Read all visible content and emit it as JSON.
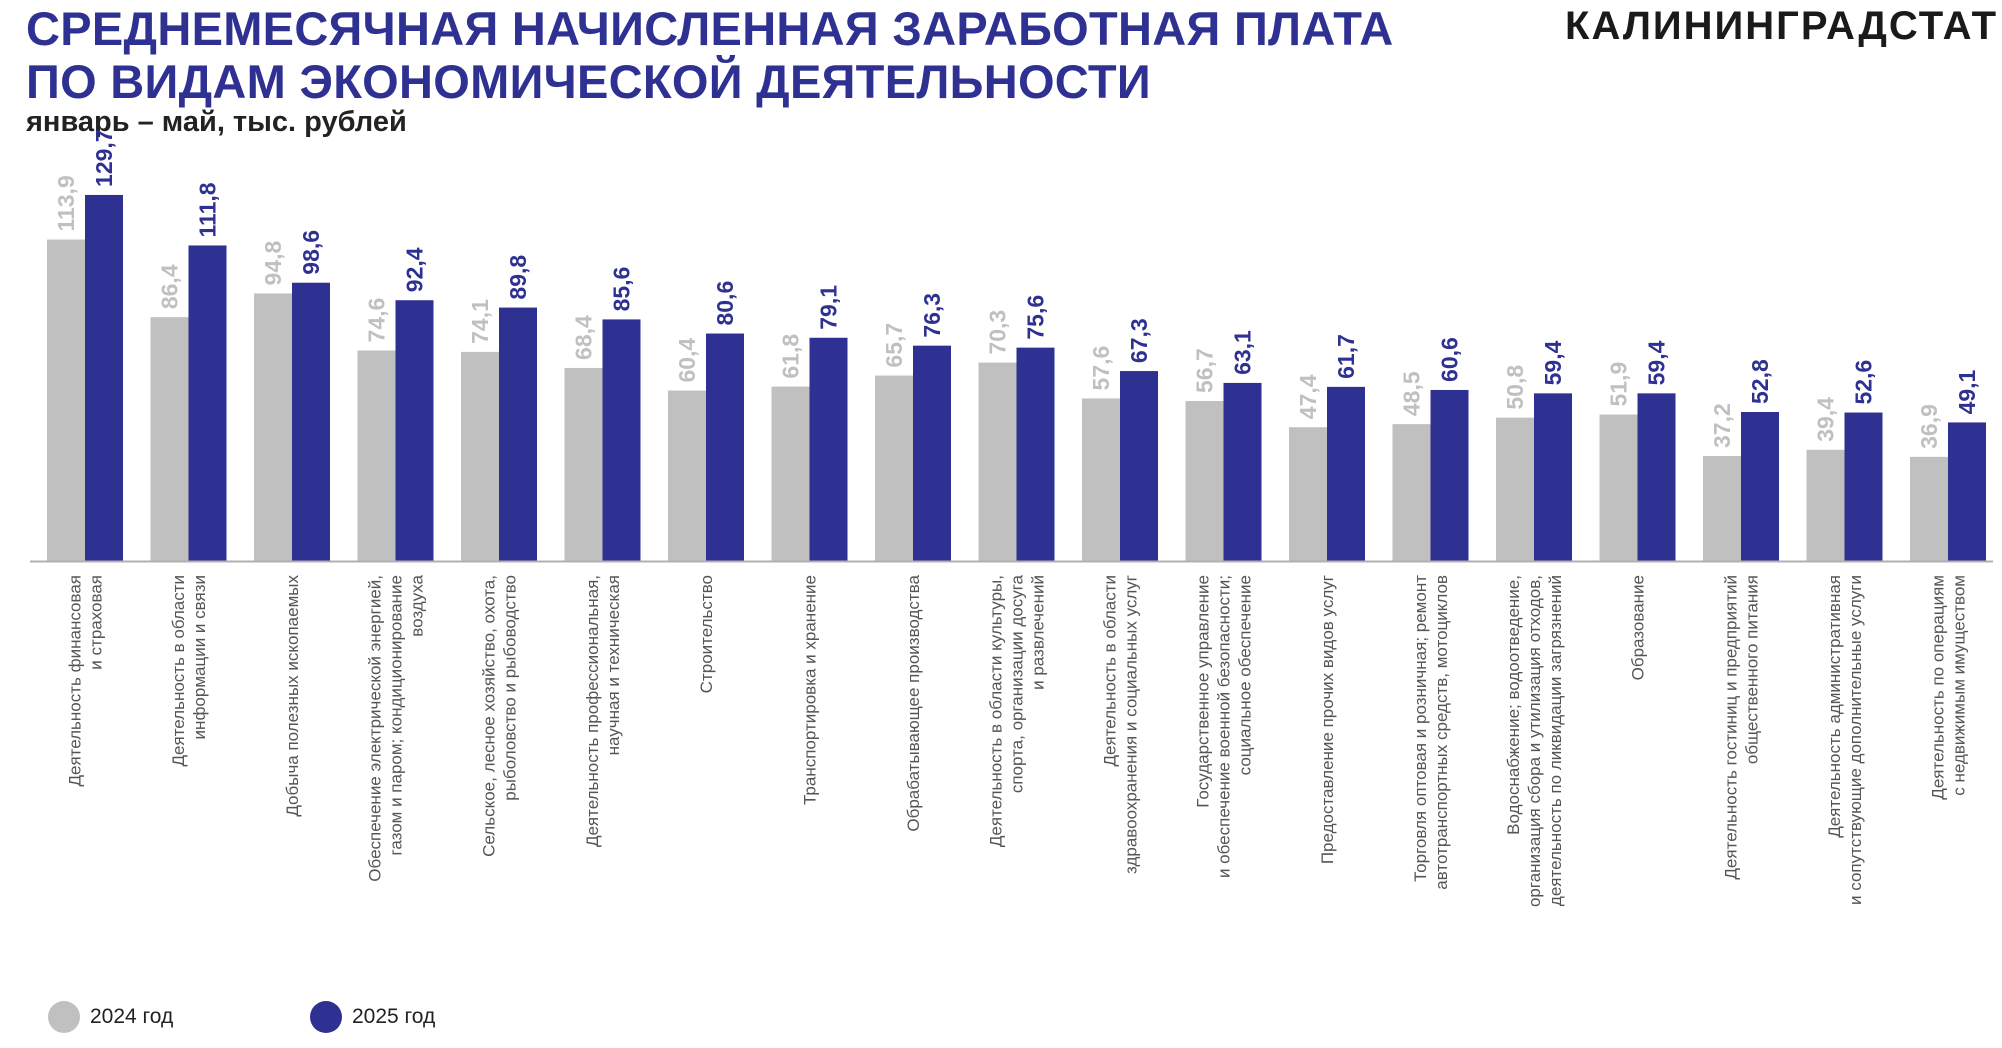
{
  "header": {
    "title_line1": "СРЕДНЕМЕСЯЧНАЯ НАЧИСЛЕННАЯ ЗАРАБОТНАЯ ПЛАТА",
    "title_line2": "ПО ВИДАМ ЭКОНОМИЧЕСКОЙ ДЕЯТЕЛЬНОСТИ",
    "subtitle": "январь – май, тыс. рублей",
    "brand": "КАЛИНИНГРАДСТАТ"
  },
  "colors": {
    "series_2024": "#c0c0c0",
    "series_2025": "#2e3192",
    "axis": "#b0b0b0",
    "label": "#555555"
  },
  "chart_data": {
    "type": "bar",
    "title": "СРЕДНЕМЕСЯЧНАЯ НАЧИСЛЕННАЯ ЗАРАБОТНАЯ ПЛАТА ПО ВИДАМ ЭКОНОМИЧЕСКОЙ ДЕЯТЕЛЬНОСТИ",
    "subtitle": "январь – май, тыс. рублей",
    "ylim": [
      0,
      135
    ],
    "grid": false,
    "legend_position": "bottom-left",
    "categories": [
      [
        "Деятельность финансовая",
        "и страховая"
      ],
      [
        "Деятельность в области",
        "информации и связи"
      ],
      [
        "Добыча полезных ископаемых"
      ],
      [
        "Обеспечение электрической энергией,",
        "газом и паром; кондиционирование",
        "воздуха"
      ],
      [
        "Сельское, лесное хозяйство, охота,",
        "рыболовство и рыбоводство"
      ],
      [
        "Деятельность профессиональная,",
        "научная и техническая"
      ],
      [
        "Строительство"
      ],
      [
        "Транспортировка и хранение"
      ],
      [
        "Обрабатывающее производства"
      ],
      [
        "Деятельность в области культуры,",
        "спорта, организации досуга",
        "и развлечений"
      ],
      [
        "Деятельность в области",
        "здравоохранения и социальных услуг"
      ],
      [
        "Государственное управление",
        "и обеспечение военной безопасности;",
        "социальное обеспечение"
      ],
      [
        "Предоставление прочих видов услуг"
      ],
      [
        "Торговля оптовая и розничная; ремонт",
        "автотранспортных средств, мотоциклов"
      ],
      [
        "Водоснабжение; водоотведение,",
        "организация сбора и утилизация отходов,",
        "деятельность по ликвидации загрязнений"
      ],
      [
        "Образование"
      ],
      [
        "Деятельность гостиниц и предприятий",
        "общественного питания"
      ],
      [
        "Деятельность административная",
        "и сопутствующие дополнительные услуги"
      ],
      [
        "Деятельность по операциям",
        "с недвижимым имуществом"
      ]
    ],
    "series": [
      {
        "name": "2024 год",
        "values": [
          113.9,
          86.4,
          94.8,
          74.6,
          74.1,
          68.4,
          60.4,
          61.8,
          65.7,
          70.3,
          57.6,
          56.7,
          47.4,
          48.5,
          50.8,
          51.9,
          37.2,
          39.4,
          36.9
        ],
        "labels": [
          "113,9",
          "86,4",
          "94,8",
          "74,6",
          "74,1",
          "68,4",
          "60,4",
          "61,8",
          "65,7",
          "70,3",
          "57,6",
          "56,7",
          "47,4",
          "48,5",
          "50,8",
          "51,9",
          "37,2",
          "39,4",
          "36,9"
        ]
      },
      {
        "name": "2025 год",
        "values": [
          129.7,
          111.8,
          98.6,
          92.4,
          89.8,
          85.6,
          80.6,
          79.1,
          76.3,
          75.6,
          67.3,
          63.1,
          61.7,
          60.6,
          59.4,
          59.4,
          52.8,
          52.6,
          49.1
        ],
        "labels": [
          "129,7",
          "111,8",
          "98,6",
          "92,4",
          "89,8",
          "85,6",
          "80,6",
          "79,1",
          "76,3",
          "75,6",
          "67,3",
          "63,1",
          "61,7",
          "60,6",
          "59,4",
          "59,4",
          "52,8",
          "52,6",
          "49,1"
        ]
      }
    ]
  },
  "legend": {
    "items": [
      {
        "label": "2024 год"
      },
      {
        "label": "2025 год"
      }
    ]
  }
}
